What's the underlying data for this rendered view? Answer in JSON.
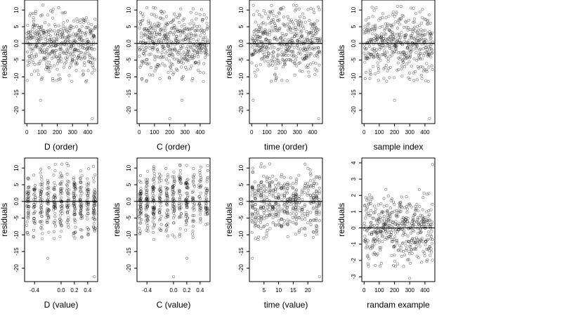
{
  "chart_data": [
    {
      "type": "scatter",
      "xlabel": "D (order)",
      "ylabel": "residuals",
      "xlim": [
        -15,
        465
      ],
      "ylim": [
        -24,
        13
      ],
      "xticks": [
        0,
        100,
        200,
        300,
        400
      ],
      "xtick_labels": [
        "0",
        "100",
        "200",
        "300",
        "400"
      ],
      "yticks": [
        10,
        5,
        0,
        -5,
        -10,
        -15,
        -20
      ],
      "ytick_labels": [
        "10",
        "5",
        "0.0",
        "-5",
        "-10",
        "-15",
        "-20"
      ],
      "hline": 0,
      "points": {
        "n": 450,
        "x_range": [
          0,
          450
        ],
        "mean": 0,
        "sd": 4.8,
        "outliers": [
          [
            430,
            -22.5
          ],
          [
            90,
            -17
          ]
        ]
      }
    },
    {
      "type": "scatter",
      "xlabel": "C (order)",
      "ylabel": "residuals",
      "xlim": [
        -15,
        465
      ],
      "ylim": [
        -24,
        13
      ],
      "xticks": [
        0,
        100,
        200,
        300,
        400
      ],
      "xtick_labels": [
        "0",
        "100",
        "200",
        "300",
        "400"
      ],
      "yticks": [
        10,
        5,
        0,
        -5,
        -10,
        -15,
        -20
      ],
      "ytick_labels": [
        "10",
        "5",
        "0.0",
        "-5",
        "-10",
        "-15",
        "-20"
      ],
      "hline": 0,
      "points": {
        "n": 450,
        "x_range": [
          0,
          450
        ],
        "mean": 0,
        "sd": 4.8,
        "outliers": [
          [
            200,
            -22.5
          ],
          [
            280,
            -17
          ]
        ]
      }
    },
    {
      "type": "scatter",
      "xlabel": "time (order)",
      "ylabel": "residuals",
      "xlim": [
        -15,
        465
      ],
      "ylim": [
        -24,
        13
      ],
      "xticks": [
        0,
        100,
        200,
        300,
        400
      ],
      "xtick_labels": [
        "0",
        "100",
        "200",
        "300",
        "400"
      ],
      "yticks": [
        10,
        5,
        0,
        -5,
        -10,
        -15,
        -20
      ],
      "ytick_labels": [
        "10",
        "5",
        "0.0",
        "-5",
        "-10",
        "-15",
        "-20"
      ],
      "hline": 0,
      "points": {
        "n": 450,
        "x_range": [
          0,
          450
        ],
        "mean": 0,
        "sd": 4.8,
        "outliers": [
          [
            440,
            -22.5
          ],
          [
            10,
            -17
          ]
        ]
      }
    },
    {
      "type": "scatter",
      "xlabel": "sample index",
      "ylabel": "residuals",
      "xlim": [
        -15,
        465
      ],
      "ylim": [
        -24,
        13
      ],
      "xticks": [
        0,
        100,
        200,
        300,
        400
      ],
      "xtick_labels": [
        "0",
        "100",
        "200",
        "300",
        "400"
      ],
      "yticks": [
        10,
        5,
        0,
        -5,
        -10,
        -15,
        -20
      ],
      "ytick_labels": [
        "10",
        "5",
        "0.0",
        "-5",
        "-10",
        "-15",
        "-20"
      ],
      "hline": 0,
      "points": {
        "n": 450,
        "x_range": [
          0,
          450
        ],
        "mean": 0,
        "sd": 4.8,
        "outliers": [
          [
            430,
            -22.5
          ],
          [
            200,
            -17
          ]
        ]
      }
    },
    {
      "type": "scatter",
      "xlabel": "D (value)",
      "ylabel": "residuals",
      "xlim": [
        -0.55,
        0.55
      ],
      "ylim": [
        -24,
        13
      ],
      "xticks": [
        -0.4,
        0.0,
        0.2,
        0.4
      ],
      "xtick_labels": [
        "-0.4",
        "0.0",
        "0.2",
        "0.4"
      ],
      "yticks": [
        10,
        5,
        0,
        -5,
        -10,
        -15,
        -20
      ],
      "ytick_labels": [
        "10",
        "5",
        "0.0",
        "-5",
        "-10",
        "-15",
        "-20"
      ],
      "hline": 0,
      "points": {
        "n": 450,
        "x_clusters": [
          -0.5,
          -0.4,
          -0.3,
          -0.2,
          -0.1,
          0.0,
          0.1,
          0.2,
          0.3,
          0.4,
          0.5
        ],
        "mean": 0,
        "sd": 4.8,
        "outliers": [
          [
            0.5,
            -22.5
          ],
          [
            -0.2,
            -17
          ]
        ]
      }
    },
    {
      "type": "scatter",
      "xlabel": "C (value)",
      "ylabel": "residuals",
      "xlim": [
        -0.55,
        0.55
      ],
      "ylim": [
        -24,
        13
      ],
      "xticks": [
        -0.4,
        0.0,
        0.2,
        0.4
      ],
      "xtick_labels": [
        "-0.4",
        "0.0",
        "0.2",
        "0.4"
      ],
      "yticks": [
        10,
        5,
        0,
        -5,
        -10,
        -15,
        -20
      ],
      "ytick_labels": [
        "10",
        "5",
        "0.0",
        "-5",
        "-10",
        "-15",
        "-20"
      ],
      "hline": 0,
      "points": {
        "n": 450,
        "x_clusters": [
          -0.5,
          -0.4,
          -0.3,
          -0.2,
          -0.1,
          0.0,
          0.1,
          0.2,
          0.3,
          0.4,
          0.5
        ],
        "mean": 0,
        "sd": 4.8,
        "outliers": [
          [
            0.0,
            -22.5
          ],
          [
            0.2,
            -17
          ]
        ]
      }
    },
    {
      "type": "scatter",
      "xlabel": "time (value)",
      "ylabel": "residuals",
      "xlim": [
        0,
        25
      ],
      "ylim": [
        -24,
        13
      ],
      "xticks": [
        5,
        10,
        15,
        20
      ],
      "xtick_labels": [
        "5",
        "10",
        "15",
        "20"
      ],
      "yticks": [
        10,
        5,
        0,
        -5,
        -10,
        -15,
        -20
      ],
      "ytick_labels": [
        "10",
        "5",
        "0.0",
        "-5",
        "-10",
        "-15",
        "-20"
      ],
      "hline": 0,
      "points": {
        "n": 450,
        "x_clusters": [
          1,
          2,
          3,
          4,
          5,
          6,
          7,
          8,
          9,
          10,
          11,
          12,
          13,
          14,
          15,
          16,
          17,
          18,
          19,
          20,
          21,
          22,
          23,
          24
        ],
        "mean": 0,
        "sd": 4.8,
        "outliers": [
          [
            24,
            -22.5
          ],
          [
            1,
            -17
          ]
        ]
      }
    },
    {
      "type": "scatter",
      "xlabel": "randam example",
      "ylabel": "residuals",
      "xlim": [
        -15,
        465
      ],
      "ylim": [
        -3.3,
        4.3
      ],
      "xticks": [
        0,
        100,
        200,
        300,
        400
      ],
      "xtick_labels": [
        "0",
        "100",
        "200",
        "300",
        "400"
      ],
      "yticks": [
        4,
        3,
        2,
        1,
        0,
        -1,
        -2,
        -3
      ],
      "ytick_labels": [
        "4",
        "3",
        "2",
        "1",
        "0",
        "-1",
        "-2",
        "-3"
      ],
      "hline": 0,
      "points": {
        "n": 450,
        "x_range": [
          0,
          450
        ],
        "mean": 0,
        "sd": 1.0,
        "outliers": [
          [
            450,
            3.9
          ],
          [
            300,
            -3.1
          ]
        ]
      }
    }
  ]
}
